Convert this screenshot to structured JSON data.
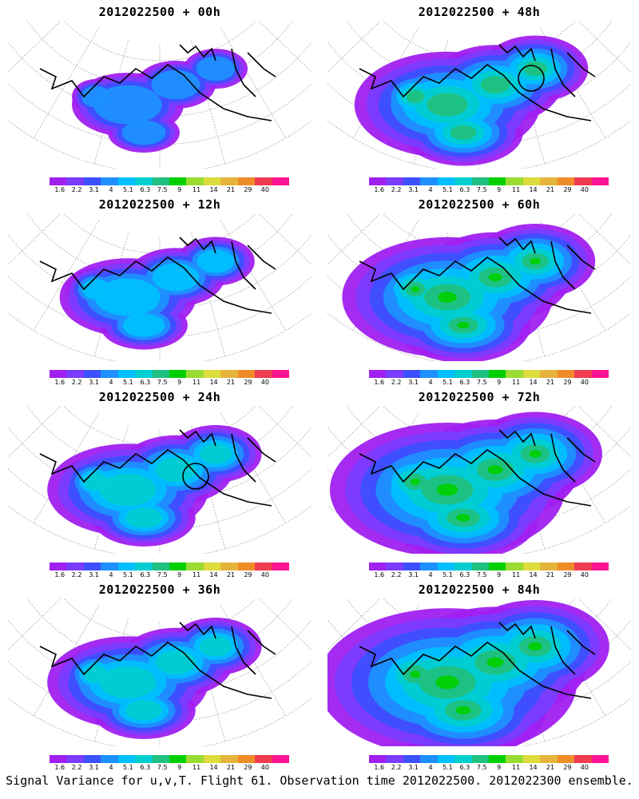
{
  "title_prefix": "2012022500",
  "panels": [
    {
      "title": "2012022500 + 00h",
      "intensity": 0,
      "circle": false
    },
    {
      "title": "2012022500 + 48h",
      "intensity": 3,
      "circle": true
    },
    {
      "title": "2012022500 + 12h",
      "intensity": 1,
      "circle": false
    },
    {
      "title": "2012022500 + 60h",
      "intensity": 4,
      "circle": false
    },
    {
      "title": "2012022500 + 24h",
      "intensity": 2,
      "circle": true
    },
    {
      "title": "2012022500 + 72h",
      "intensity": 5,
      "circle": false
    },
    {
      "title": "2012022500 + 36h",
      "intensity": 2,
      "circle": false
    },
    {
      "title": "2012022500 + 84h",
      "intensity": 6,
      "circle": false
    }
  ],
  "colorbar": {
    "labels": [
      "1.6",
      "2.2",
      "3.1",
      "4",
      "5.1",
      "6.3",
      "7.5",
      "9",
      "11",
      "14",
      "21",
      "29",
      "40"
    ],
    "colors": [
      "#a020f0",
      "#7a3cff",
      "#3c50ff",
      "#1e90ff",
      "#00bfff",
      "#00ced1",
      "#20c080",
      "#00d000",
      "#9adc32",
      "#dcdc3c",
      "#e6b43c",
      "#f08c28",
      "#f03c50",
      "#ff1493"
    ]
  },
  "footer": "Signal Variance for u,v,T. Flight 61. Observation time 2012022500. 2012022300 ensemble."
}
